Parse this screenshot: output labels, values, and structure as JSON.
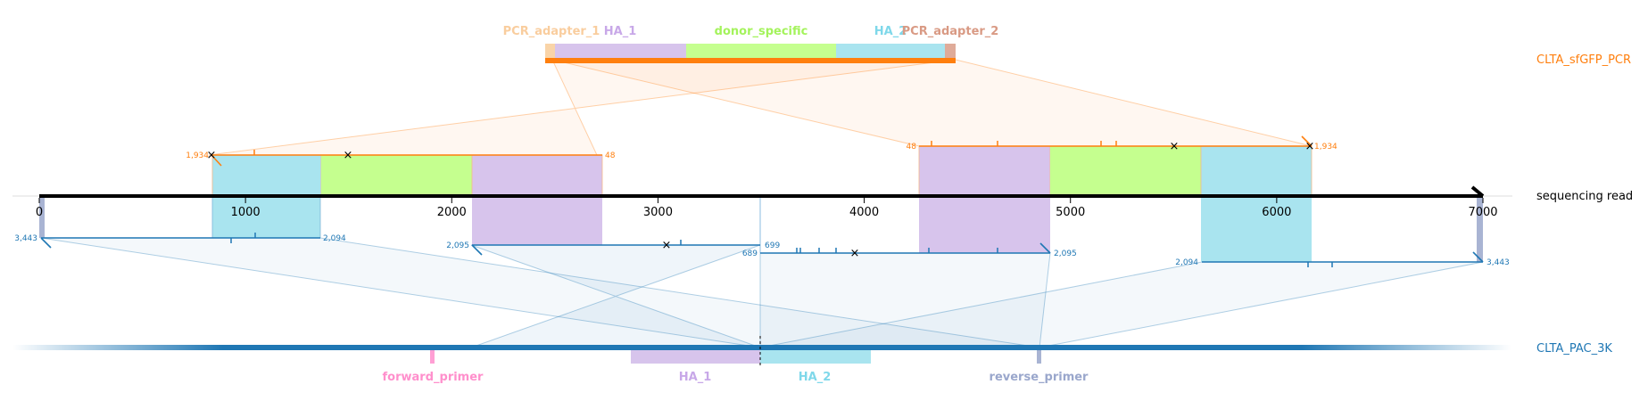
{
  "targets": {
    "donor": {
      "name": "CLTA_sfGFP_PCR",
      "color": "#ff7f0e"
    },
    "read": {
      "name": "sequencing read",
      "color": "#000000"
    },
    "genome": {
      "name": "CLTA_PAC_3K",
      "color": "#1f77b4"
    }
  },
  "donor_features": [
    {
      "name": "PCR_adapter_1",
      "start": 0,
      "end": 48,
      "color": "#f9d4a8"
    },
    {
      "name": "HA_1",
      "start": 48,
      "end": 686,
      "color": "#d7c4ec"
    },
    {
      "name": "donor_specific",
      "start": 686,
      "end": 1415,
      "color": "#c5ff8f"
    },
    {
      "name": "HA_2",
      "start": 1415,
      "end": 1934,
      "color": "#a9e4ef"
    },
    {
      "name": "PCR_adapter_2",
      "start": 1934,
      "end": 1982,
      "color": "#dfab99"
    }
  ],
  "genome_features": [
    {
      "name": "forward_primer",
      "color": "#ff9fd4"
    },
    {
      "name": "HA_1",
      "color": "#d7c4ec"
    },
    {
      "name": "HA_2",
      "color": "#a9e4ef"
    },
    {
      "name": "reverse_primer",
      "color": "#a9b4d3"
    }
  ],
  "read_axis": {
    "min": 0,
    "max": 7000,
    "ticks": [
      "0",
      "1000",
      "2000",
      "3000",
      "4000",
      "5000",
      "6000",
      "7000"
    ]
  },
  "alignment_labels": {
    "donor_a_start": "1,934",
    "donor_a_end": "48",
    "donor_b_start": "48",
    "donor_b_end": "1,934",
    "gen_a_start": "3,443",
    "gen_a_end": "2,094",
    "gen_b_start": "2,095",
    "gen_b_end": "699",
    "gen_c_start": "689",
    "gen_c_end": "2,095",
    "gen_d_start": "2,094",
    "gen_d_end": "3,443"
  }
}
